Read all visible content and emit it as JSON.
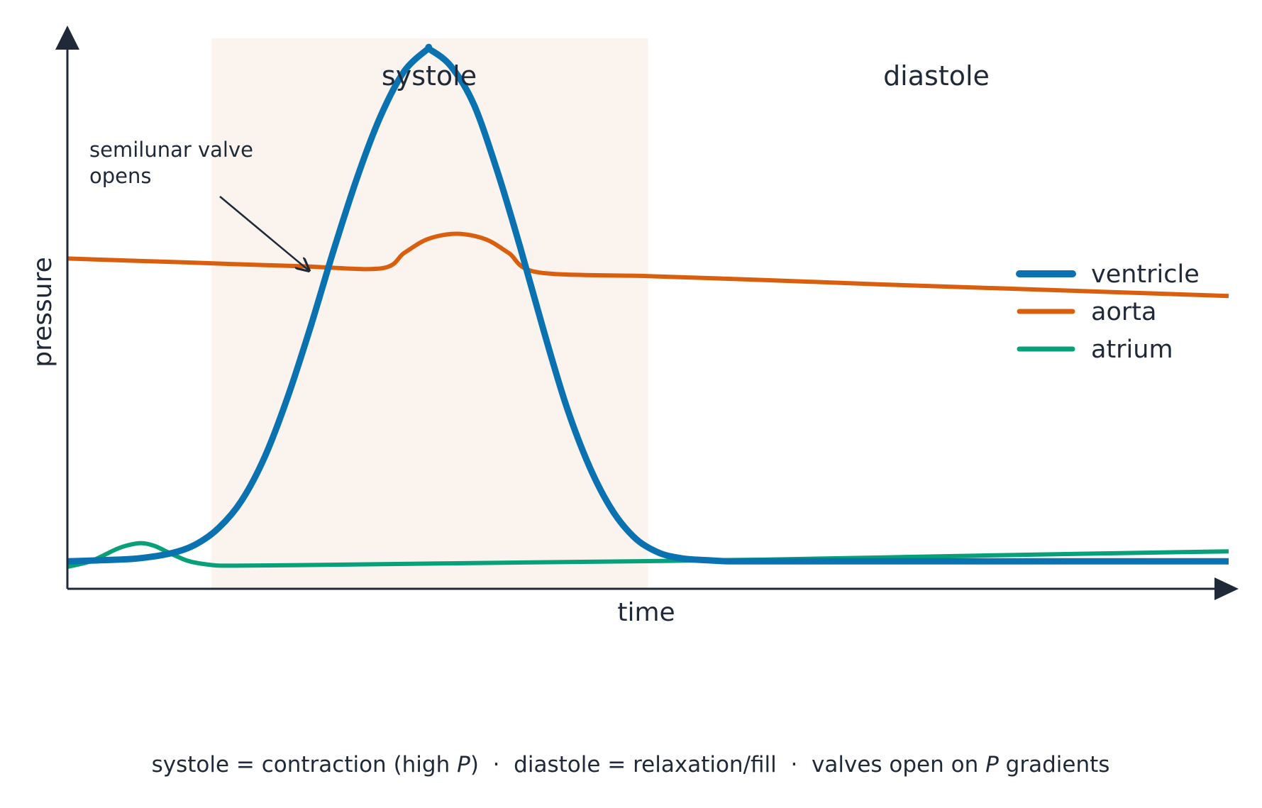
{
  "chart_data": {
    "type": "line",
    "xlabel": "time",
    "ylabel": "pressure",
    "xlim": [
      0,
      1
    ],
    "ylim": [
      0,
      1
    ],
    "phases": [
      {
        "name": "systole",
        "x_start": 0.124,
        "x_end": 0.5,
        "shaded": true,
        "color": "#faf3ee"
      },
      {
        "name": "diastole",
        "x_start": 0.5,
        "x_end": 1.0,
        "shaded": false
      }
    ],
    "annotation": {
      "lines": [
        "semilunar valve",
        "opens"
      ],
      "points_to": {
        "x": 0.208,
        "y": 0.578
      }
    },
    "series": [
      {
        "name": "ventricle",
        "color": "#0a72b0",
        "x": [
          0,
          0.03,
          0.06,
          0.09,
          0.11,
          0.13,
          0.15,
          0.17,
          0.19,
          0.21,
          0.23,
          0.25,
          0.27,
          0.29,
          0.31,
          0.312,
          0.33,
          0.35,
          0.37,
          0.39,
          0.41,
          0.43,
          0.45,
          0.47,
          0.49,
          0.51,
          0.53,
          0.55,
          0.57,
          0.6,
          0.65,
          0.7,
          0.8,
          0.9,
          1.0
        ],
        "y": [
          0.05,
          0.052,
          0.055,
          0.065,
          0.08,
          0.11,
          0.16,
          0.24,
          0.35,
          0.48,
          0.62,
          0.75,
          0.86,
          0.94,
          0.98,
          0.98,
          0.95,
          0.88,
          0.76,
          0.62,
          0.47,
          0.33,
          0.22,
          0.14,
          0.09,
          0.065,
          0.055,
          0.052,
          0.05,
          0.05,
          0.05,
          0.05,
          0.05,
          0.05,
          0.05
        ]
      },
      {
        "name": "aorta",
        "color": "#d95f0e",
        "x": [
          0,
          0.1,
          0.2,
          0.27,
          0.29,
          0.31,
          0.335,
          0.36,
          0.38,
          0.405,
          0.5,
          0.6,
          0.7,
          0.8,
          0.9,
          1.0
        ],
        "y": [
          0.6,
          0.593,
          0.586,
          0.582,
          0.61,
          0.635,
          0.645,
          0.635,
          0.61,
          0.575,
          0.568,
          0.561,
          0.553,
          0.546,
          0.539,
          0.532
        ]
      },
      {
        "name": "atrium",
        "color": "#07a078",
        "x": [
          0,
          0.02,
          0.04,
          0.05,
          0.063,
          0.075,
          0.09,
          0.105,
          0.125,
          0.14,
          0.2,
          0.4,
          0.6,
          0.8,
          1.0
        ],
        "y": [
          0.04,
          0.05,
          0.07,
          0.078,
          0.083,
          0.078,
          0.063,
          0.05,
          0.043,
          0.042,
          0.043,
          0.048,
          0.053,
          0.061,
          0.068
        ]
      }
    ],
    "legend_position": "right",
    "footer": {
      "before_p1": "systole = contraction (high ",
      "p1": "P",
      "mid": ")  ·  diastole = relaxation/fill  ·  valves open on ",
      "p2": "P",
      "after_p2": " gradients"
    }
  }
}
